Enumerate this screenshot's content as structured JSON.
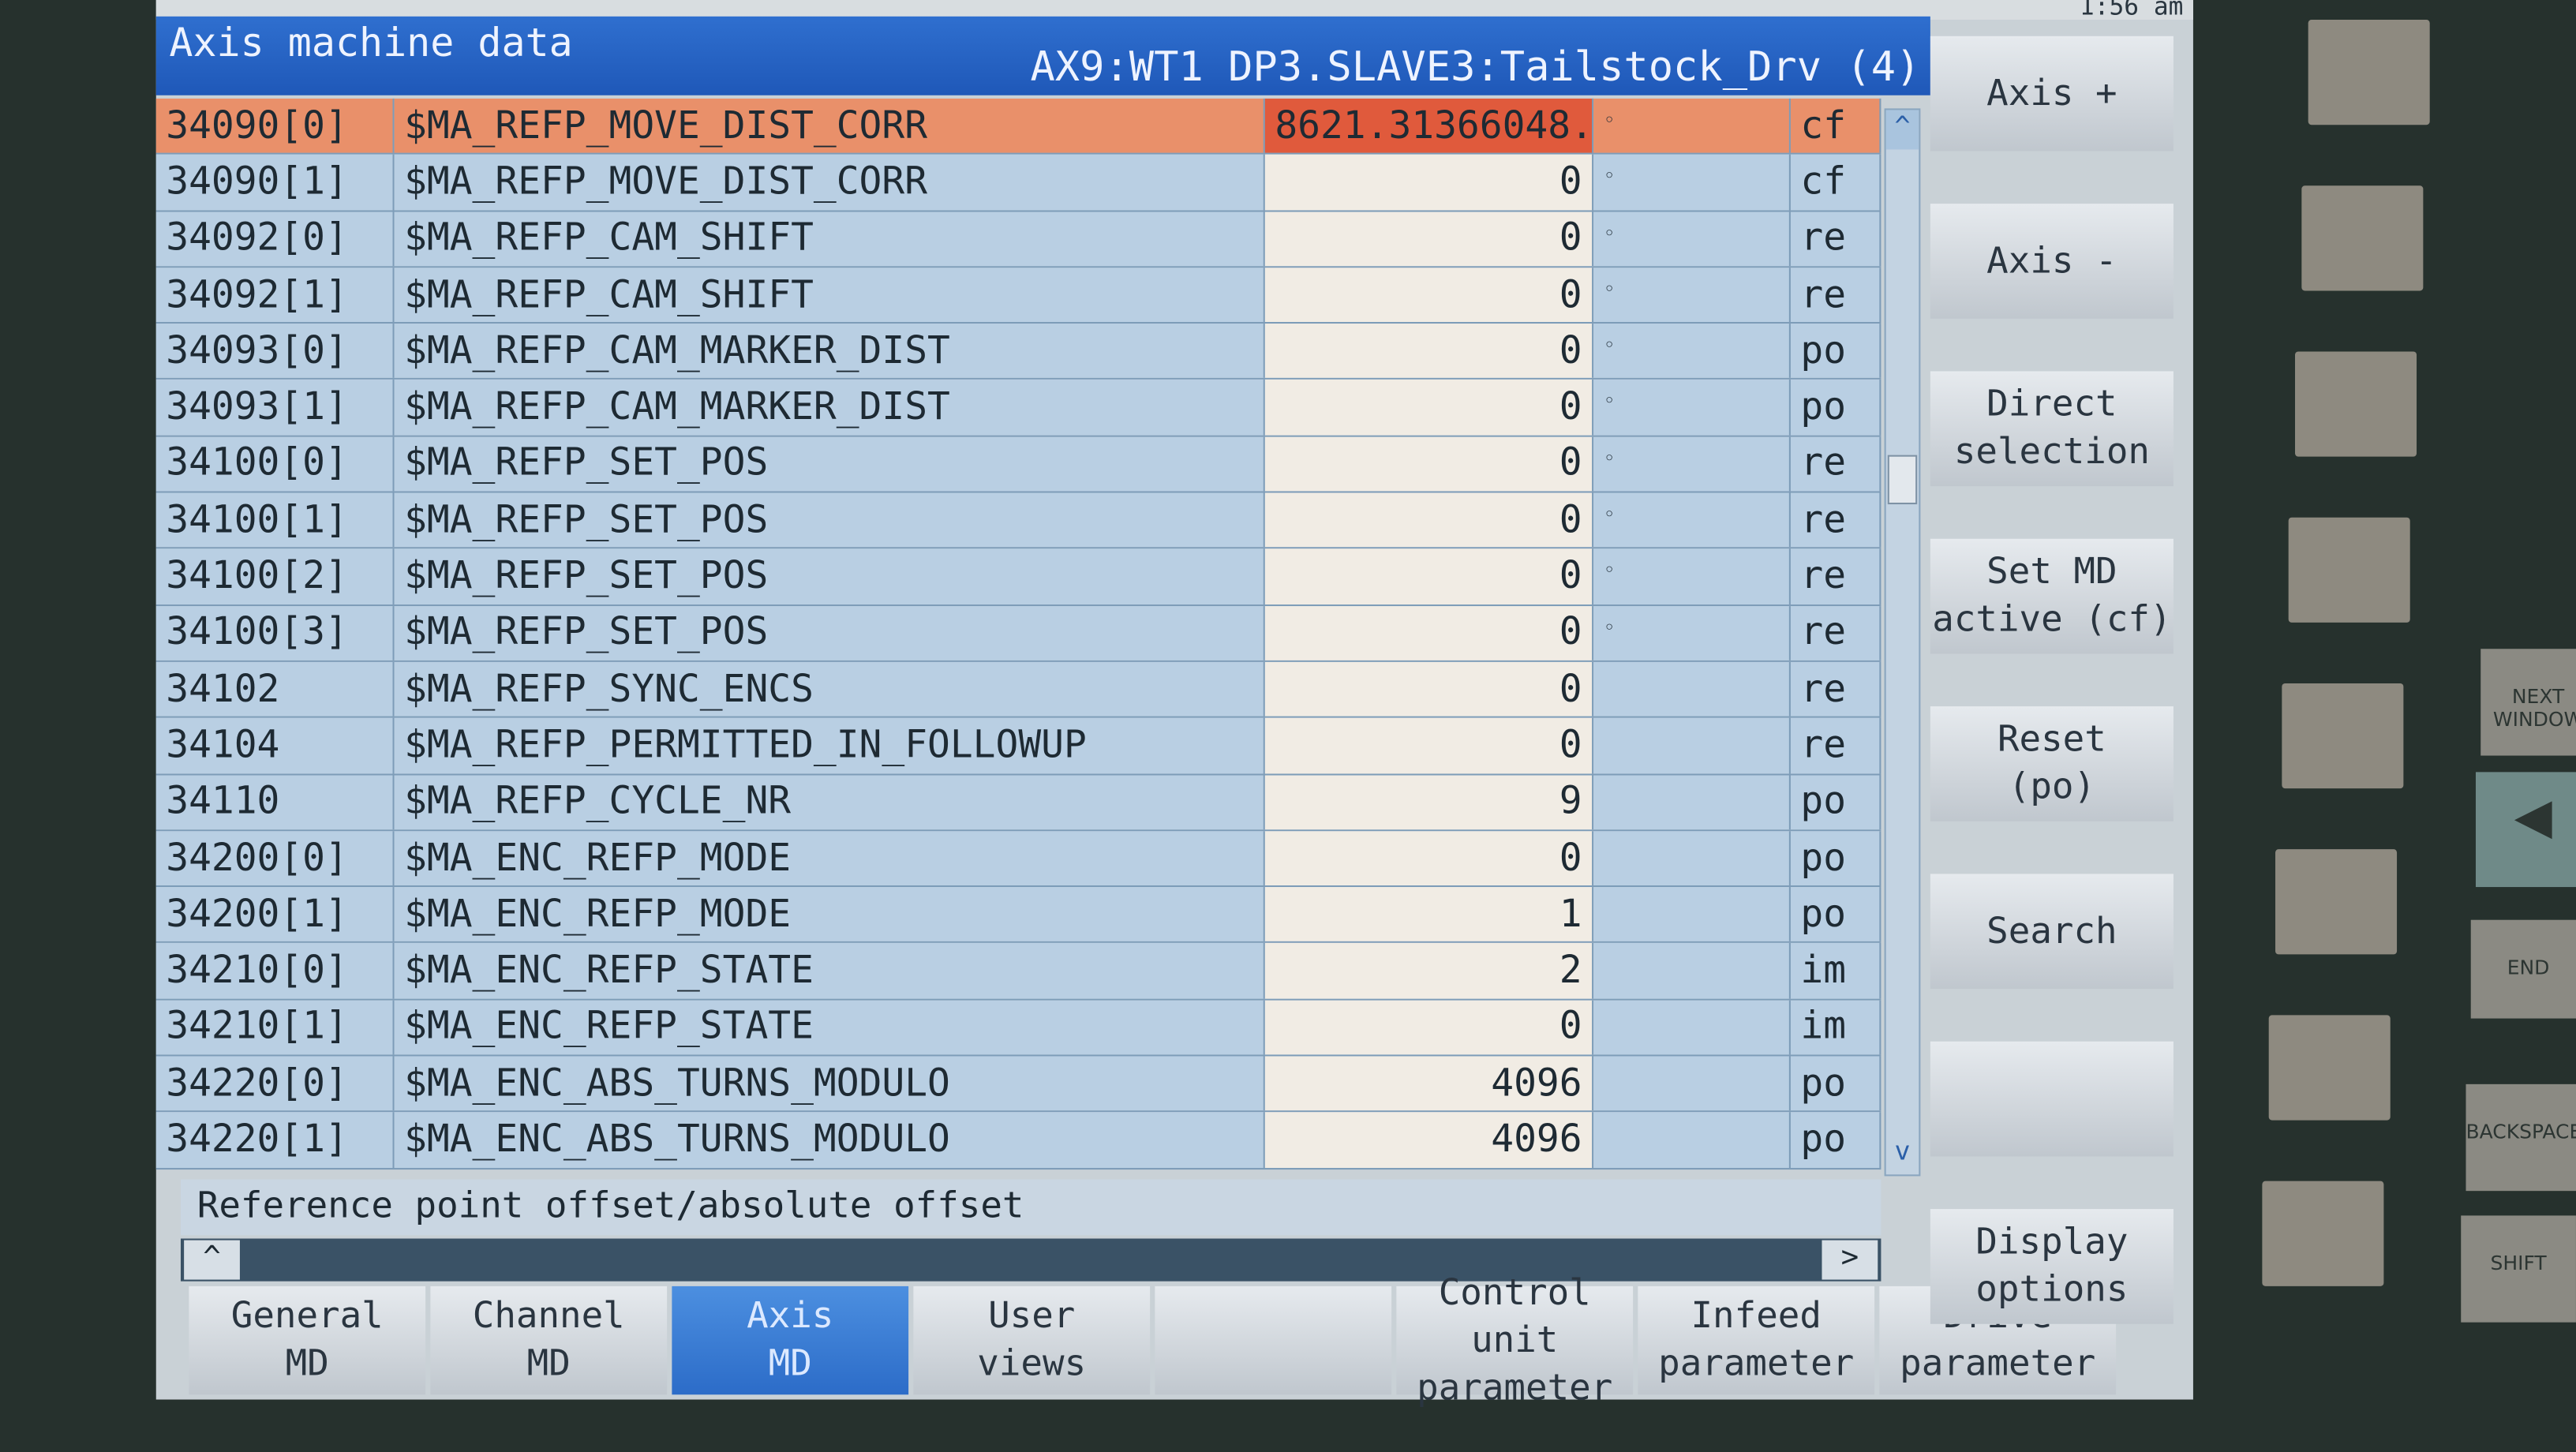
{
  "status": {
    "clock": "1:56 am"
  },
  "header": {
    "title": "Axis machine data",
    "axis": "AX9:WT1 DP3.SLAVE3:Tailstock_Drv (4)"
  },
  "table": {
    "rows": [
      {
        "id": "34090[0]",
        "name": "$MA_REFP_MOVE_DIST_CORR",
        "value": "8621.31366048...",
        "unit": "◦",
        "status": "cf",
        "selected": true
      },
      {
        "id": "34090[1]",
        "name": "$MA_REFP_MOVE_DIST_CORR",
        "value": "0",
        "unit": "◦",
        "status": "cf"
      },
      {
        "id": "34092[0]",
        "name": "$MA_REFP_CAM_SHIFT",
        "value": "0",
        "unit": "◦",
        "status": "re"
      },
      {
        "id": "34092[1]",
        "name": "$MA_REFP_CAM_SHIFT",
        "value": "0",
        "unit": "◦",
        "status": "re"
      },
      {
        "id": "34093[0]",
        "name": "$MA_REFP_CAM_MARKER_DIST",
        "value": "0",
        "unit": "◦",
        "status": "po"
      },
      {
        "id": "34093[1]",
        "name": "$MA_REFP_CAM_MARKER_DIST",
        "value": "0",
        "unit": "◦",
        "status": "po"
      },
      {
        "id": "34100[0]",
        "name": "$MA_REFP_SET_POS",
        "value": "0",
        "unit": "◦",
        "status": "re"
      },
      {
        "id": "34100[1]",
        "name": "$MA_REFP_SET_POS",
        "value": "0",
        "unit": "◦",
        "status": "re"
      },
      {
        "id": "34100[2]",
        "name": "$MA_REFP_SET_POS",
        "value": "0",
        "unit": "◦",
        "status": "re"
      },
      {
        "id": "34100[3]",
        "name": "$MA_REFP_SET_POS",
        "value": "0",
        "unit": "◦",
        "status": "re"
      },
      {
        "id": "34102",
        "name": "$MA_REFP_SYNC_ENCS",
        "value": "0",
        "unit": "",
        "status": "re"
      },
      {
        "id": "34104",
        "name": "$MA_REFP_PERMITTED_IN_FOLLOWUP",
        "value": "0",
        "unit": "",
        "status": "re"
      },
      {
        "id": "34110",
        "name": "$MA_REFP_CYCLE_NR",
        "value": "9",
        "unit": "",
        "status": "po"
      },
      {
        "id": "34200[0]",
        "name": "$MA_ENC_REFP_MODE",
        "value": "0",
        "unit": "",
        "status": "po"
      },
      {
        "id": "34200[1]",
        "name": "$MA_ENC_REFP_MODE",
        "value": "1",
        "unit": "",
        "status": "po"
      },
      {
        "id": "34210[0]",
        "name": "$MA_ENC_REFP_STATE",
        "value": "2",
        "unit": "",
        "status": "im"
      },
      {
        "id": "34210[1]",
        "name": "$MA_ENC_REFP_STATE",
        "value": "0",
        "unit": "",
        "status": "im"
      },
      {
        "id": "34220[0]",
        "name": "$MA_ENC_ABS_TURNS_MODULO",
        "value": "4096",
        "unit": "",
        "status": "po"
      },
      {
        "id": "34220[1]",
        "name": "$MA_ENC_ABS_TURNS_MODULO",
        "value": "4096",
        "unit": "",
        "status": "po"
      }
    ]
  },
  "description": "Reference point offset/absolute offset",
  "scroll": {
    "left": "^",
    "right": ">",
    "up": "^",
    "down": "v"
  },
  "softkeys_bottom": [
    {
      "label": "General\nMD"
    },
    {
      "label": "Channel\nMD"
    },
    {
      "label": "Axis\nMD",
      "active": true
    },
    {
      "label": "User\nviews"
    },
    {
      "label": ""
    },
    {
      "label": "Control unit\nparameter"
    },
    {
      "label": "Infeed\nparameter"
    },
    {
      "label": "Drive\nparameter"
    }
  ],
  "softkeys_right": [
    {
      "label": "Axis +"
    },
    {
      "label": "Axis -"
    },
    {
      "label": "Direct\nselection"
    },
    {
      "label": "Set MD\nactive (cf)"
    },
    {
      "label": "Reset\n(po)"
    },
    {
      "label": "Search"
    },
    {
      "label": ""
    },
    {
      "label": "Display\noptions"
    }
  ],
  "keyboard": {
    "keys": [
      "NEXT WINDOW",
      "◀",
      "END",
      "BACKSPACE",
      "SHIFT"
    ]
  },
  "colors": {
    "title_bar": "#1f58b8",
    "selected_row": "#e9906a",
    "selected_value": "#e05a3c",
    "row_bg": "#b9cfe3",
    "value_bg": "#f1ece4"
  }
}
